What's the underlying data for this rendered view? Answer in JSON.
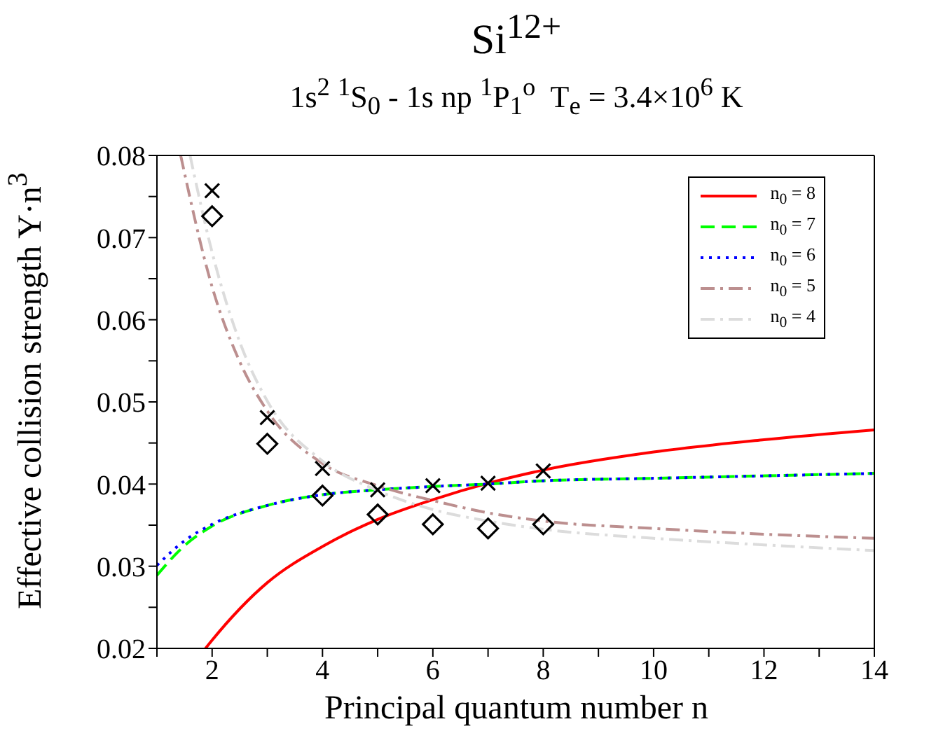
{
  "chart_data": {
    "type": "line",
    "title": "Si$^{12+}$",
    "subtitle": "1s$^{2}$ $^{1}$S$_{0}$ - 1s np $^{1}$P$_{1}$$^{o}$  T$_{e}$ = 3.4×10$^{6}$ K",
    "xlabel": "Principal quantum number n",
    "ylabel": "Effective collision strength Y·n$^{3}$",
    "xlim": [
      1,
      14
    ],
    "xticks": [
      {
        "value": 1,
        "label": null
      },
      2,
      {
        "value": 3,
        "label": null
      },
      4,
      {
        "value": 5,
        "label": null
      },
      6,
      {
        "value": 7,
        "label": null
      },
      8,
      {
        "value": 9,
        "label": null
      },
      10,
      {
        "value": 11,
        "label": null
      },
      12,
      {
        "value": 13,
        "label": null
      },
      14
    ],
    "ylim": [
      0.02,
      0.08
    ],
    "yticks": [
      0.02,
      {
        "value": 0.025,
        "label": null
      },
      0.03,
      {
        "value": 0.035,
        "label": null
      },
      0.04,
      {
        "value": 0.045,
        "label": null
      },
      0.05,
      {
        "value": 0.055,
        "label": null
      },
      0.06,
      {
        "value": 0.065,
        "label": null
      },
      0.07,
      {
        "value": 0.075,
        "label": null
      },
      0.08
    ],
    "grid": false,
    "legend": "top right",
    "series": [
      {
        "name": "n$_{0}$ = 8",
        "color": "#ff0000",
        "line_style": "solid",
        "marker": "none",
        "x": [
          1.88,
          2,
          3,
          4,
          5,
          6,
          7,
          8,
          10,
          12,
          14
        ],
        "values": [
          0.02,
          0.021,
          0.028,
          0.0324,
          0.0357,
          0.0381,
          0.0401,
          0.0417,
          0.0439,
          0.0454,
          0.0466
        ]
      },
      {
        "name": "n$_{0}$ = 7",
        "color": "#00ff00",
        "line_style": "dashed",
        "marker": "none",
        "x": [
          1,
          1.5,
          2,
          3,
          4,
          5,
          6,
          7,
          8,
          10,
          12,
          14
        ],
        "values": [
          0.0289,
          0.0325,
          0.0349,
          0.0374,
          0.0387,
          0.0393,
          0.0397,
          0.04,
          0.0404,
          0.0407,
          0.041,
          0.0413
        ]
      },
      {
        "name": "n$_{0}$ = 6",
        "color": "#0000ff",
        "line_style": "dotted",
        "marker": "none",
        "x": [
          1,
          1.5,
          2,
          3,
          4,
          5,
          6,
          7,
          8,
          10,
          12,
          14
        ],
        "values": [
          0.0301,
          0.0331,
          0.0351,
          0.0374,
          0.0387,
          0.0393,
          0.0397,
          0.04,
          0.0404,
          0.0407,
          0.041,
          0.0413
        ]
      },
      {
        "name": "n$_{0}$ = 5",
        "color": "#bc8f8f",
        "line_style": "dashdot",
        "marker": "none",
        "x": [
          1.43,
          2,
          2.5,
          3,
          4,
          5,
          6,
          7,
          8,
          10,
          12,
          14
        ],
        "values": [
          0.08,
          0.064,
          0.0549,
          0.0489,
          0.0425,
          0.0398,
          0.038,
          0.0365,
          0.0355,
          0.0346,
          0.0339,
          0.0334
        ]
      },
      {
        "name": "n$_{0}$ = 4",
        "color": "#dcdcdc",
        "line_style": "dashdot",
        "marker": "none",
        "x": [
          1.6,
          2,
          2.5,
          3,
          4,
          5,
          6,
          7,
          8,
          10,
          12,
          14
        ],
        "values": [
          0.08,
          0.0682,
          0.0573,
          0.0501,
          0.0428,
          0.0392,
          0.0369,
          0.0355,
          0.0345,
          0.0334,
          0.0326,
          0.0319
        ]
      },
      {
        "type": "scatter",
        "color": "#000000",
        "marker": "cross",
        "x": [
          2,
          3,
          4,
          5,
          6,
          7,
          8
        ],
        "values": [
          0.0757,
          0.0481,
          0.0419,
          0.0393,
          0.0398,
          0.0401,
          0.0416
        ]
      },
      {
        "type": "scatter",
        "color": "#000000",
        "marker": "diamond",
        "x": [
          2,
          3,
          4,
          5,
          6,
          7,
          8
        ],
        "values": [
          0.0726,
          0.0449,
          0.0386,
          0.0363,
          0.0351,
          0.0346,
          0.0351
        ]
      }
    ]
  }
}
